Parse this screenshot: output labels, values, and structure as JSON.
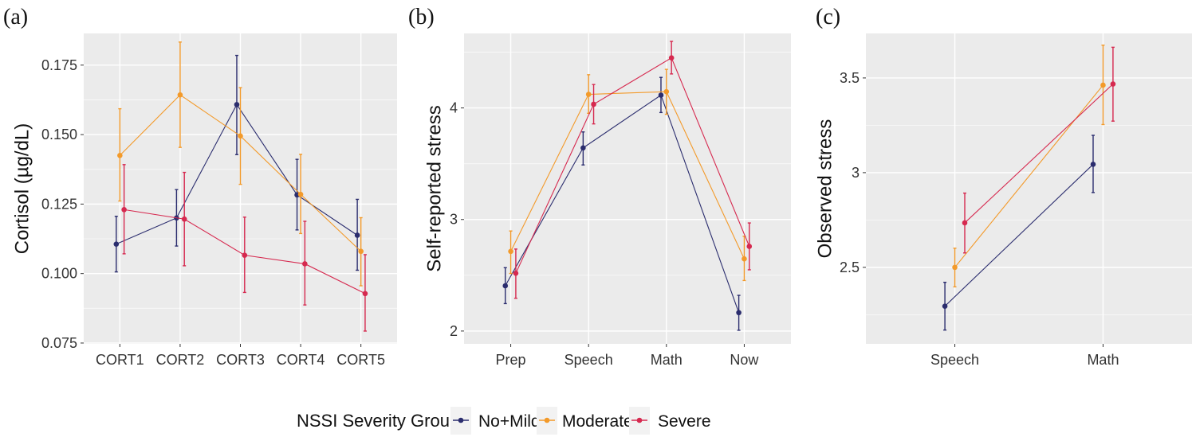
{
  "legend": {
    "title": "NSSI Severity Group",
    "entries": [
      {
        "name": "No+Mild",
        "color": "#2b2d6e"
      },
      {
        "name": "Moderate",
        "color": "#f39a2a"
      },
      {
        "name": "Severe",
        "color": "#d6294f"
      }
    ],
    "placement": "bottom"
  },
  "chart_data": [
    {
      "type": "line",
      "panel_label": "(a)",
      "xlabel": "",
      "ylabel": "Cortisol (µg/dL)",
      "categories": [
        "CORT1",
        "CORT2",
        "CORT3",
        "CORT4",
        "CORT5"
      ],
      "yticks": [
        0.075,
        0.1,
        0.125,
        0.15,
        0.175
      ],
      "ytick_labels": [
        "0.075",
        "0.100",
        "0.125",
        "0.150",
        "0.175"
      ],
      "ylim": [
        0.0747,
        0.1864
      ],
      "grid": true,
      "series": [
        {
          "name": "No+Mild",
          "values": [
            0.1106,
            0.12,
            0.1608,
            0.1283,
            0.1138
          ],
          "err_low": [
            0.1006,
            0.1099,
            0.1428,
            0.1157,
            0.1012
          ],
          "err_high": [
            0.1206,
            0.1302,
            0.1785,
            0.1411,
            0.1267
          ]
        },
        {
          "name": "Moderate",
          "values": [
            0.1425,
            0.1643,
            0.1495,
            0.1285,
            0.108
          ],
          "err_low": [
            0.1261,
            0.1454,
            0.1321,
            0.1144,
            0.0956
          ],
          "err_high": [
            0.1593,
            0.1833,
            0.1669,
            0.1429,
            0.1201
          ]
        },
        {
          "name": "Severe",
          "values": [
            0.123,
            0.1196,
            0.1066,
            0.1035,
            0.0928
          ],
          "err_low": [
            0.1071,
            0.1028,
            0.0932,
            0.0887,
            0.0793
          ],
          "err_high": [
            0.1392,
            0.1364,
            0.1203,
            0.1188,
            0.1068
          ]
        }
      ]
    },
    {
      "type": "line",
      "panel_label": "(b)",
      "xlabel": "",
      "ylabel": "Self-reported stress",
      "categories": [
        "Prep",
        "Speech",
        "Math",
        "Now"
      ],
      "yticks": [
        2,
        3,
        4
      ],
      "ytick_labels": [
        "2",
        "3",
        "4"
      ],
      "ylim": [
        1.885,
        4.668
      ],
      "grid": true,
      "series": [
        {
          "name": "No+Mild",
          "values": [
            2.406,
            3.642,
            4.115,
            2.165
          ],
          "err_low": [
            2.246,
            3.489,
            3.959,
            2.007
          ],
          "err_high": [
            2.568,
            3.785,
            4.274,
            2.32
          ]
        },
        {
          "name": "Moderate",
          "values": [
            2.714,
            4.122,
            4.146,
            2.647
          ],
          "err_low": [
            2.516,
            3.952,
            3.943,
            2.453
          ],
          "err_high": [
            2.897,
            4.298,
            4.346,
            2.85
          ]
        },
        {
          "name": "Severe",
          "values": [
            2.518,
            4.033,
            4.449,
            2.759
          ],
          "err_low": [
            2.294,
            3.857,
            4.305,
            2.549
          ],
          "err_high": [
            2.735,
            4.21,
            4.597,
            2.969
          ]
        }
      ]
    },
    {
      "type": "line",
      "panel_label": "(c)",
      "xlabel": "",
      "ylabel": "Observed stress",
      "categories": [
        "Speech",
        "Math"
      ],
      "yticks": [
        2.5,
        3,
        3.5
      ],
      "ytick_labels": [
        "2.5",
        "3",
        "3.5"
      ],
      "ylim": [
        2.096,
        3.735
      ],
      "grid": true,
      "series": [
        {
          "name": "No+Mild",
          "values": [
            2.295,
            3.044
          ],
          "err_low": [
            2.169,
            2.895
          ],
          "err_high": [
            2.421,
            3.197
          ]
        },
        {
          "name": "Moderate",
          "values": [
            2.5,
            3.462
          ],
          "err_low": [
            2.397,
            3.254
          ],
          "err_high": [
            2.601,
            3.673
          ]
        },
        {
          "name": "Severe",
          "values": [
            2.735,
            3.468
          ],
          "err_low": [
            2.576,
            3.272
          ],
          "err_high": [
            2.892,
            3.662
          ]
        }
      ]
    }
  ]
}
